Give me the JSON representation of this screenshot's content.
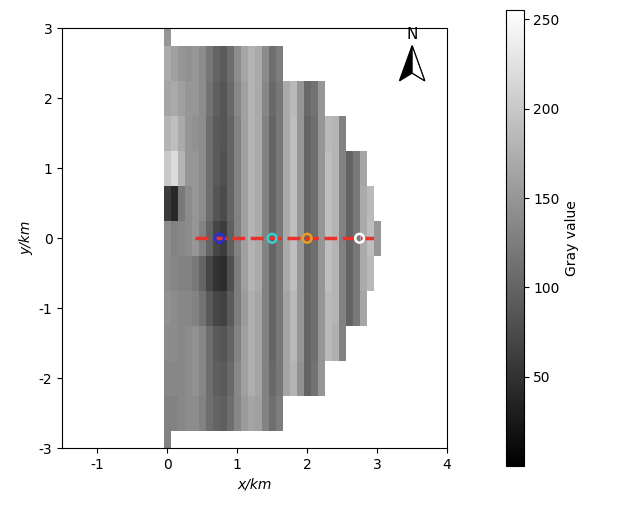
{
  "chart_data": {
    "type": "heatmap",
    "x_label": "x/km",
    "y_label": "y/km",
    "xlim": [
      -1.5,
      4
    ],
    "xticks": [
      -1,
      0,
      1,
      2,
      3,
      4
    ],
    "ylim": [
      -3,
      3
    ],
    "yticks": [
      -3,
      -2,
      -1,
      0,
      1,
      2,
      3
    ],
    "annotations": [
      "N"
    ],
    "x": [
      0.0,
      0.1,
      0.2,
      0.3,
      0.4,
      0.5,
      0.6,
      0.7,
      0.8,
      0.9,
      1.0,
      1.1,
      1.2,
      1.3,
      1.4,
      1.5,
      1.6,
      1.7,
      1.8,
      1.9,
      2.0,
      2.1,
      2.2,
      2.3,
      2.4,
      2.5,
      2.6,
      2.7,
      2.8,
      2.9,
      3.0
    ],
    "y": [
      3.0,
      2.5,
      2.0,
      1.5,
      1.0,
      0.5,
      0.0,
      -0.5,
      -1.0,
      -1.5,
      -2.0,
      -2.5,
      -3.0
    ],
    "cells": [
      [
        150,
        null,
        null,
        null,
        null,
        null,
        null,
        null,
        null,
        null,
        null,
        null,
        null,
        null,
        null,
        null,
        null,
        null,
        null,
        null,
        null,
        null,
        null,
        null,
        null,
        null,
        null,
        null,
        null,
        null,
        null
      ],
      [
        170,
        160,
        150,
        145,
        150,
        140,
        120,
        100,
        90,
        110,
        140,
        165,
        180,
        170,
        140,
        110,
        125,
        null,
        null,
        null,
        null,
        null,
        null,
        null,
        null,
        null,
        null,
        null,
        null,
        null,
        null
      ],
      [
        165,
        170,
        160,
        150,
        150,
        140,
        115,
        95,
        85,
        105,
        135,
        160,
        180,
        170,
        135,
        105,
        120,
        170,
        185,
        150,
        105,
        115,
        150,
        null,
        null,
        null,
        null,
        null,
        null,
        null,
        null
      ],
      [
        180,
        190,
        170,
        150,
        145,
        140,
        110,
        90,
        85,
        100,
        130,
        160,
        180,
        170,
        130,
        100,
        120,
        170,
        190,
        150,
        100,
        110,
        150,
        185,
        180,
        130,
        null,
        null,
        null,
        null,
        null
      ],
      [
        200,
        220,
        180,
        150,
        150,
        140,
        110,
        90,
        80,
        100,
        130,
        160,
        180,
        170,
        130,
        100,
        120,
        170,
        190,
        150,
        100,
        110,
        150,
        190,
        180,
        130,
        100,
        120,
        165,
        null,
        null
      ],
      [
        60,
        40,
        120,
        140,
        150,
        140,
        110,
        85,
        75,
        100,
        130,
        160,
        180,
        170,
        130,
        100,
        120,
        170,
        190,
        150,
        100,
        110,
        150,
        190,
        180,
        130,
        100,
        120,
        170,
        185,
        null
      ],
      [
        140,
        130,
        135,
        140,
        150,
        130,
        100,
        70,
        60,
        95,
        130,
        160,
        180,
        170,
        130,
        100,
        120,
        170,
        190,
        150,
        100,
        110,
        150,
        190,
        180,
        130,
        100,
        120,
        170,
        190,
        150
      ],
      [
        140,
        135,
        130,
        130,
        120,
        100,
        70,
        50,
        45,
        80,
        125,
        160,
        180,
        170,
        130,
        100,
        120,
        170,
        190,
        150,
        100,
        110,
        150,
        190,
        180,
        130,
        100,
        120,
        170,
        185,
        null
      ],
      [
        145,
        140,
        135,
        135,
        130,
        115,
        90,
        70,
        65,
        90,
        125,
        155,
        175,
        165,
        130,
        100,
        120,
        165,
        185,
        150,
        100,
        110,
        150,
        185,
        180,
        130,
        100,
        120,
        165,
        null,
        null
      ],
      [
        140,
        140,
        135,
        140,
        145,
        135,
        110,
        90,
        85,
        100,
        130,
        160,
        175,
        165,
        130,
        100,
        120,
        165,
        185,
        150,
        100,
        110,
        150,
        185,
        175,
        130,
        null,
        null,
        null,
        null,
        null
      ],
      [
        135,
        135,
        135,
        140,
        145,
        135,
        110,
        95,
        90,
        105,
        135,
        160,
        175,
        165,
        130,
        105,
        120,
        165,
        180,
        145,
        100,
        115,
        150,
        null,
        null,
        null,
        null,
        null,
        null,
        null,
        null
      ],
      [
        130,
        130,
        135,
        140,
        140,
        130,
        110,
        100,
        95,
        110,
        135,
        155,
        165,
        160,
        130,
        110,
        125,
        null,
        null,
        null,
        null,
        null,
        null,
        null,
        null,
        null,
        null,
        null,
        null,
        null,
        null
      ],
      [
        130,
        null,
        null,
        null,
        null,
        null,
        null,
        null,
        null,
        null,
        null,
        null,
        null,
        null,
        null,
        null,
        null,
        null,
        null,
        null,
        null,
        null,
        null,
        null,
        null,
        null,
        null,
        null,
        null,
        null,
        null
      ]
    ],
    "colorbar": {
      "label": "Gray value",
      "range": [
        0,
        255
      ],
      "ticks": [
        50,
        100,
        150,
        200,
        250
      ]
    },
    "line": {
      "x": [
        0.4,
        3.0
      ],
      "y": [
        0,
        0
      ],
      "color": "#e8322b",
      "line_style": "dashed"
    },
    "points": {
      "x": [
        0.75,
        1.5,
        2.0,
        2.75
      ],
      "y": [
        0,
        0,
        0,
        0
      ],
      "colors": [
        "#2b2bd9",
        "#35d0d0",
        "#e8a020",
        "#ffffff"
      ],
      "marker": "o"
    }
  }
}
